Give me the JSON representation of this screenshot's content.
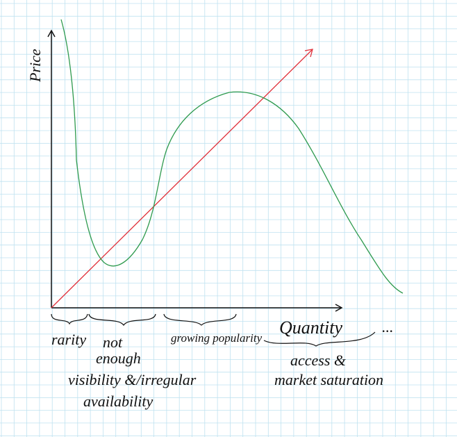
{
  "axes": {
    "y_label": "Price",
    "x_label": "Quantity"
  },
  "annotations": {
    "rarity": "rarity",
    "not_enough": [
      "not",
      "enough",
      "visibility &/irregular",
      "availability"
    ],
    "growing": "growing popularity",
    "saturation": [
      "access &",
      "market saturation"
    ],
    "more": "..."
  }
}
